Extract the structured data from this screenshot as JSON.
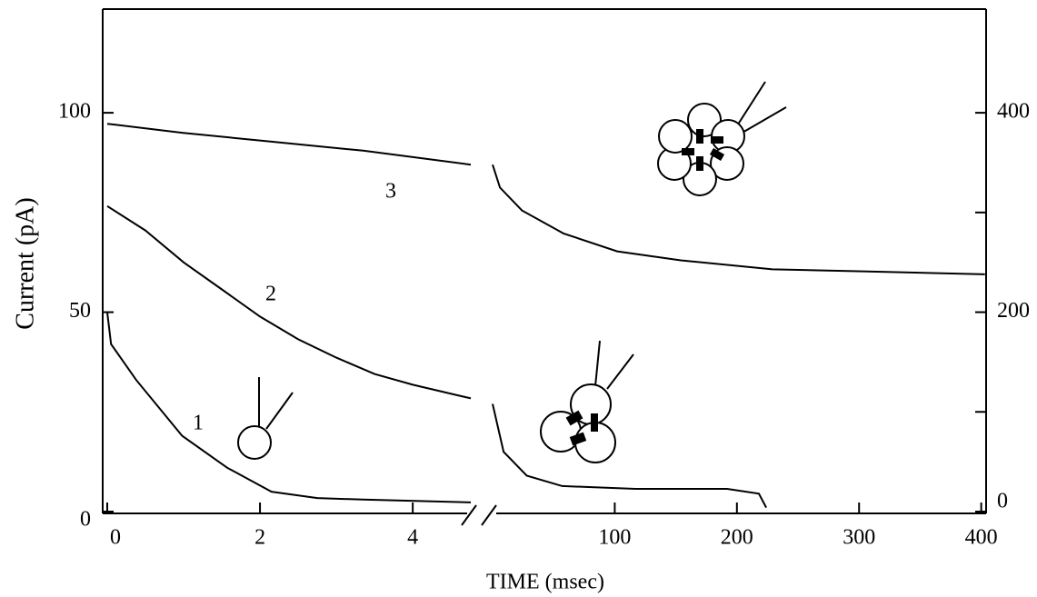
{
  "chart_data": {
    "type": "line",
    "xlabel": "TIME (msec)",
    "ylabel": "Current (pA)",
    "ylim": [
      0,
      126
    ],
    "yticks": [
      0,
      50,
      100
    ],
    "y2lim": [
      0,
      504
    ],
    "y2ticks": [
      0,
      200,
      400
    ],
    "y2minor": [
      100,
      300
    ],
    "color": "#000000",
    "panels": [
      {
        "xlim": [
          0,
          4.76
        ],
        "xticks": [
          0,
          2,
          4
        ],
        "series": [
          {
            "name": "1",
            "axis": "y",
            "x": [
              0,
              0.05,
              0.38,
              0.98,
              1.57,
              2.15,
              2.75,
              3.35,
              4.76
            ],
            "values": [
              50,
              42,
              33,
              19,
              11,
              5,
              3.4,
              3,
              2.3
            ]
          },
          {
            "name": "2",
            "axis": "y",
            "x": [
              0,
              0.5,
              1,
              1.5,
              2,
              2.5,
              3,
              3.5,
              4,
              4.76
            ],
            "values": [
              76.6,
              70.5,
              62.5,
              55.7,
              48.9,
              43.2,
              38.6,
              34.5,
              31.8,
              28.4
            ]
          },
          {
            "name": "3",
            "axis": "y2",
            "x": [
              0,
              0.98,
              2.15,
              3.35,
              4.76
            ],
            "values": [
              389,
              380,
              371,
              362,
              348
            ]
          }
        ]
      },
      {
        "xlim": [
          0,
          404
        ],
        "xticks": [
          100,
          200,
          300,
          400
        ],
        "series": [
          {
            "axis": "y",
            "x": [
              0,
              9,
              28,
              57,
              117,
              192,
              218,
              224
            ],
            "values": [
              27,
              15,
              9,
              6.4,
              5.7,
              5.7,
              4.5,
              1
            ]
          },
          {
            "axis": "y2",
            "x": [
              0,
              6,
              24,
              58,
              102,
              154,
              229,
              303,
              403
            ],
            "values": [
              348,
              325,
              302,
              279,
              261,
              252,
              243,
              241,
              238
            ]
          }
        ]
      }
    ]
  }
}
